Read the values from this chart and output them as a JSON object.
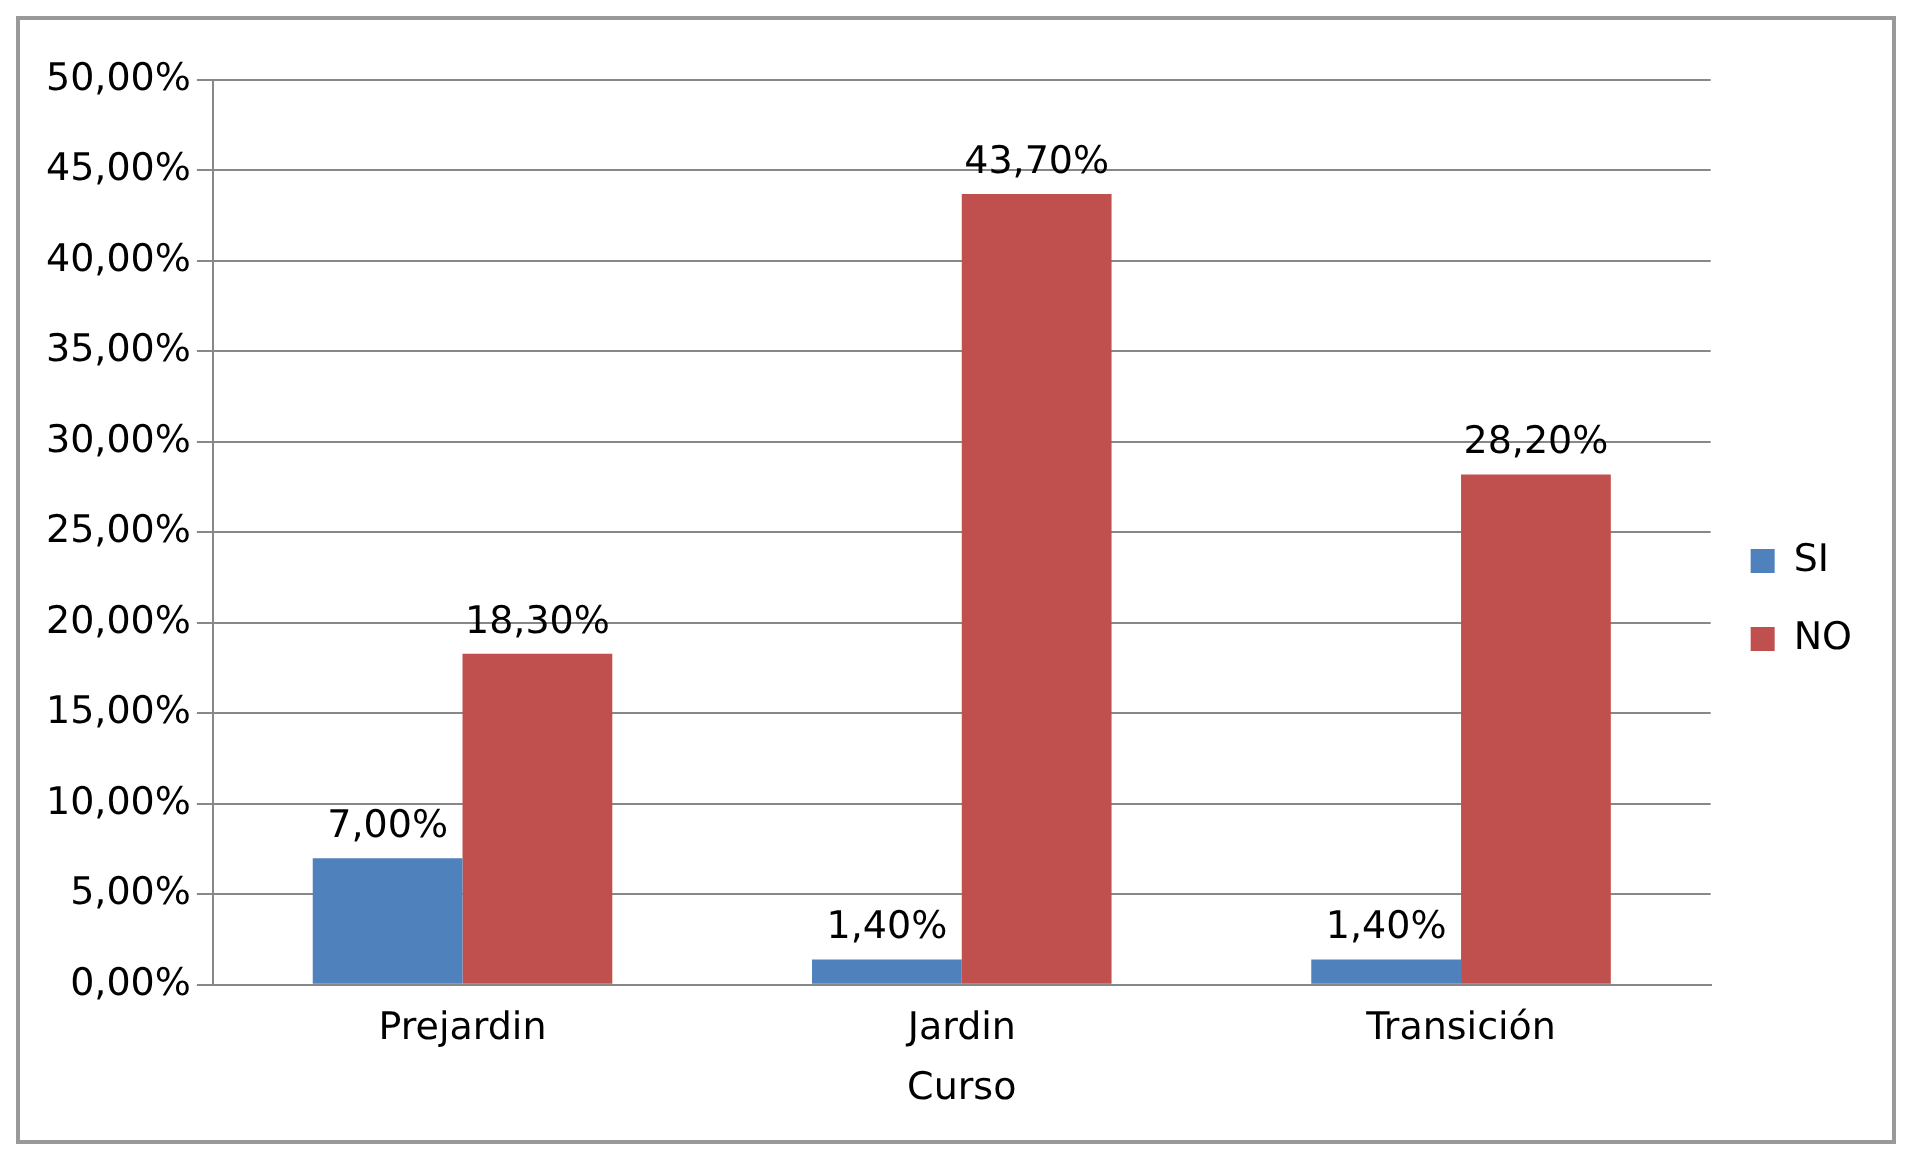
{
  "chart_data": {
    "type": "bar",
    "xlabel": "Curso",
    "categories": [
      "Prejardin",
      "Jardin",
      "Transición"
    ],
    "series": [
      {
        "name": "SI",
        "color": "#4f81bd",
        "values": [
          7.0,
          1.4,
          1.4
        ],
        "value_labels": [
          "7,00%",
          "1,40%",
          "1,40%"
        ]
      },
      {
        "name": "NO",
        "color": "#c0504d",
        "values": [
          18.3,
          43.7,
          28.2
        ],
        "value_labels": [
          "18,30%",
          "43,70%",
          "28,20%"
        ]
      }
    ],
    "ylim": [
      0,
      50
    ],
    "yticks": [
      {
        "value": 0,
        "label": "0,00%"
      },
      {
        "value": 5,
        "label": "5,00%"
      },
      {
        "value": 10,
        "label": "10,00%"
      },
      {
        "value": 15,
        "label": "15,00%"
      },
      {
        "value": 20,
        "label": "20,00%"
      },
      {
        "value": 25,
        "label": "25,00%"
      },
      {
        "value": 30,
        "label": "30,00%"
      },
      {
        "value": 35,
        "label": "35,00%"
      },
      {
        "value": 40,
        "label": "40,00%"
      },
      {
        "value": 45,
        "label": "45,00%"
      },
      {
        "value": 50,
        "label": "50,00%"
      }
    ],
    "grid": "y",
    "legend": "right"
  }
}
